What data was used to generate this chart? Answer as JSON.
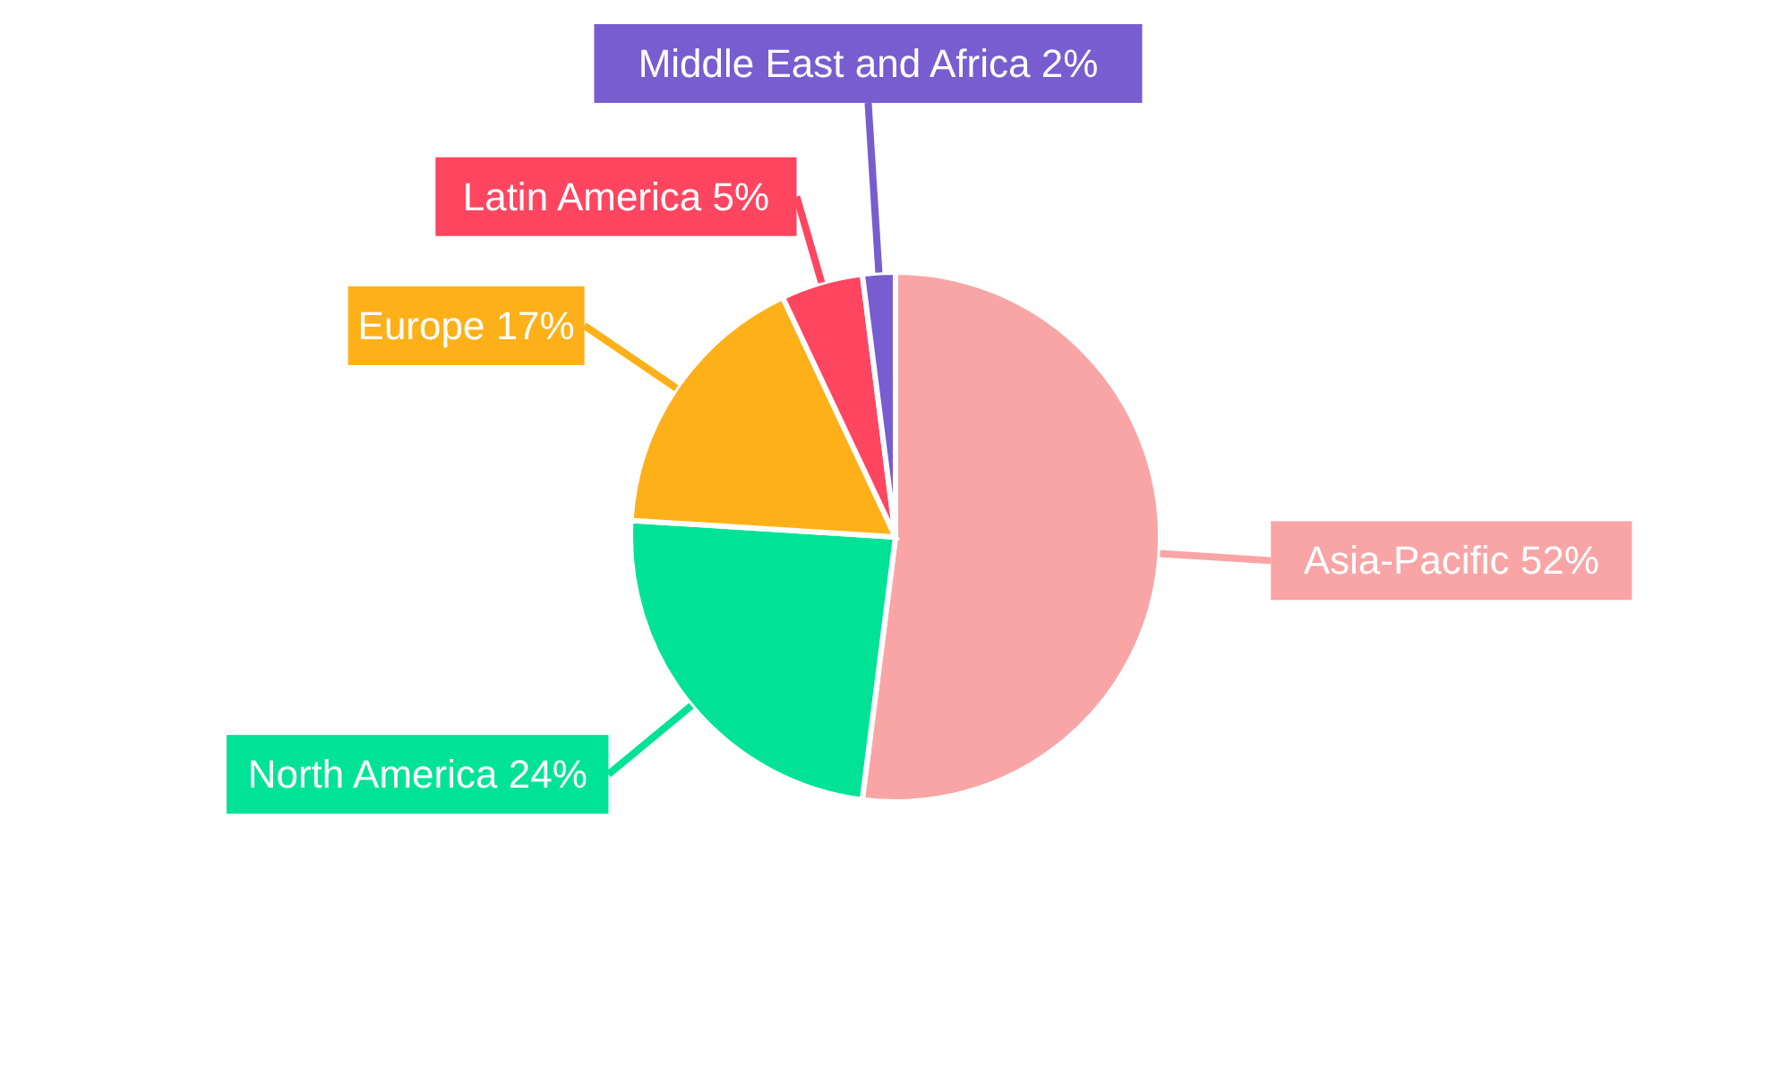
{
  "chart_data": {
    "type": "pie",
    "categories": [
      "Asia-Pacific",
      "North America",
      "Europe",
      "Latin America",
      "Middle East and Africa"
    ],
    "values": [
      52,
      24,
      17,
      5,
      2
    ],
    "value_labels": [
      "52%",
      "24%",
      "17%",
      "5%",
      "2%"
    ],
    "colors": [
      "#f9a5a6",
      "#00e396",
      "#feb019",
      "#ff4560",
      "#775dd0"
    ]
  }
}
